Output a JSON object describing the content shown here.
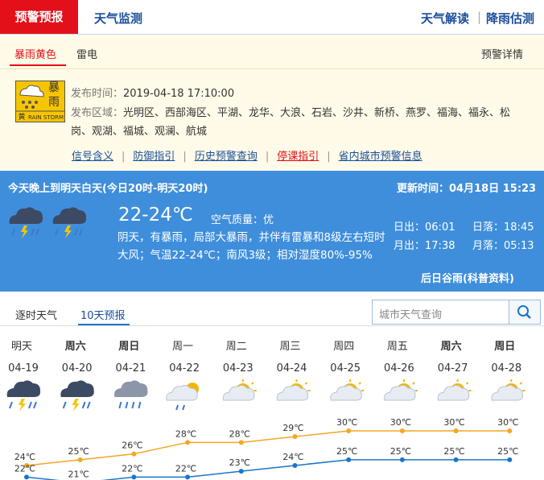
{
  "nav": {
    "active": "预警预报",
    "tabs": [
      "天气监测"
    ],
    "right": [
      "天气解读",
      "降雨估测"
    ]
  },
  "warning": {
    "tabs": [
      "暴雨黄色",
      "雷电"
    ],
    "detail_link": "预警详情",
    "icon": {
      "title": "暴雨",
      "level": "黄",
      "label": "RAIN STORM"
    },
    "issue_time_label": "发布时间：",
    "issue_time": "2019-04-18 17:10:00",
    "area_label": "发布区域：",
    "area": "光明区、西部海区、平湖、龙华、大浪、石岩、沙井、新桥、燕罗、福海、福永、松岗、观湖、福城、观澜、航城",
    "links": [
      "信号含义",
      "防御指引",
      "历史预警查询",
      "停课指引",
      "省内城市预警信息"
    ]
  },
  "today": {
    "period": "今天晚上到明天白天(今日20时-明天20时)",
    "update_label": "更新时间：",
    "update_time": "04月18日 15:23",
    "temp": "22-24℃",
    "aqi_label": "空气质量：",
    "aqi": "优",
    "description": "阴天，有暴雨，局部大暴雨，并伴有雷暴和8级左右短时大风；气温22-24℃；南风3级；相对湿度80%-95%",
    "sunrise_label": "日出：",
    "sunrise": "06:01",
    "sunset_label": "日落：",
    "sunset": "18:45",
    "moonrise_label": "月出：",
    "moonrise": "17:38",
    "moonset_label": "月落：",
    "moonset": "05:13",
    "solar_term": "后日谷雨(科普资料)"
  },
  "forecast": {
    "tabs": [
      "逐时天气",
      "10天预报"
    ],
    "search_placeholder": "城市天气查询",
    "days": [
      "明天",
      "周六",
      "周日",
      "周一",
      "周二",
      "周三",
      "周四",
      "周五",
      "周六",
      "周日"
    ],
    "dates": [
      "04-19",
      "04-20",
      "04-21",
      "04-22",
      "04-23",
      "04-24",
      "04-25",
      "04-26",
      "04-27",
      "04-28"
    ],
    "highs": [
      24,
      25,
      26,
      28,
      28,
      29,
      30,
      30,
      30,
      30
    ],
    "high_labels": [
      "24℃",
      "25℃",
      "26℃",
      "28℃",
      "28℃",
      "29℃",
      "30℃",
      "30℃",
      "30℃",
      "30℃"
    ],
    "lows": [
      22,
      21,
      22,
      22,
      23,
      24,
      25,
      25,
      25,
      25
    ],
    "low_labels": [
      "22℃",
      "21℃",
      "22℃",
      "22℃",
      "23℃",
      "24℃",
      "25℃",
      "25℃",
      "25℃",
      "25℃"
    ]
  }
}
